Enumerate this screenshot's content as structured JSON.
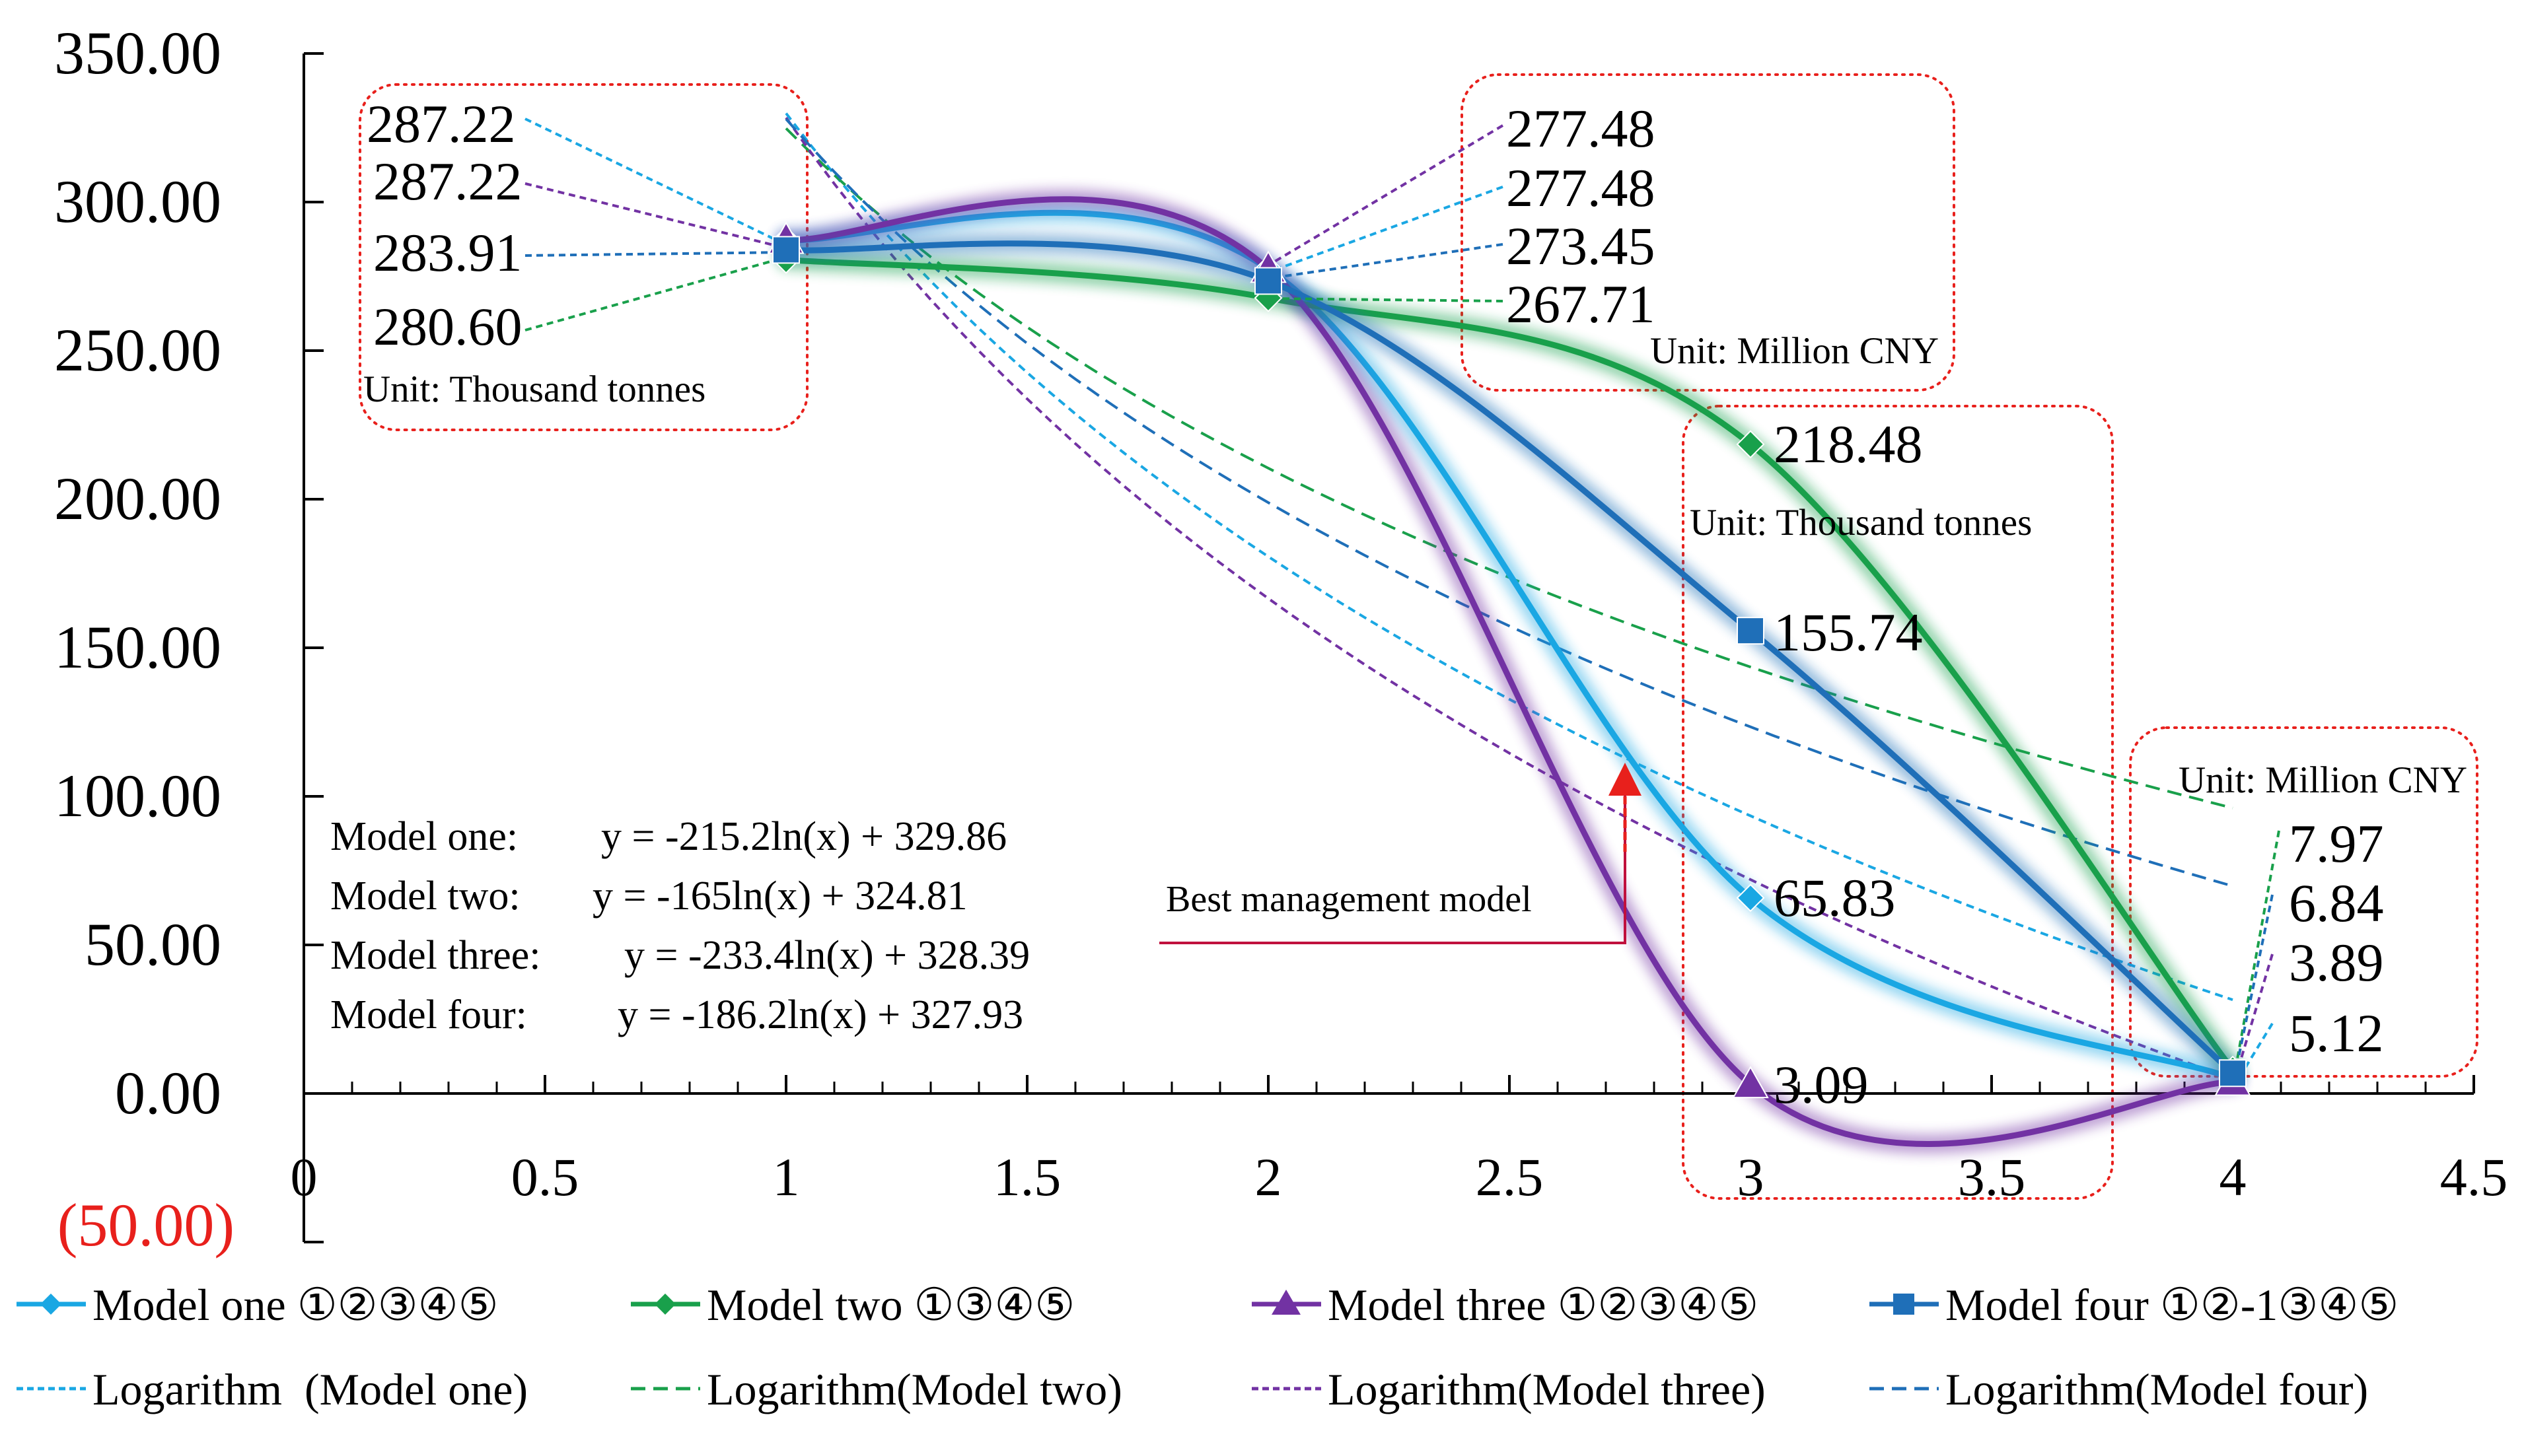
{
  "chart_data": {
    "type": "line",
    "title": "",
    "xlabel": "",
    "ylabel": "",
    "xlim": [
      0,
      4.5
    ],
    "ylim": [
      -50,
      350
    ],
    "x_ticks": [
      0,
      0.5,
      1,
      1.5,
      2,
      2.5,
      3,
      3.5,
      4,
      4.5
    ],
    "x_tick_labels": [
      "0",
      "0.5",
      "1",
      "1.5",
      "2",
      "2.5",
      "3",
      "3.5",
      "4",
      "4.5"
    ],
    "y_ticks": [
      -50,
      0,
      50,
      100,
      150,
      200,
      250,
      300,
      350
    ],
    "y_tick_labels": [
      "(50.00)",
      "0.00",
      "50.00",
      "100.00",
      "150.00",
      "200.00",
      "250.00",
      "300.00",
      "350.00"
    ],
    "negative_tick_color": "#e8201c",
    "series": [
      {
        "name": "Model one ①②③④⑤",
        "color": "#1aa7e3",
        "marker": "diamond",
        "x": [
          1,
          2,
          3,
          4
        ],
        "values": [
          287.22,
          277.48,
          65.83,
          5.12
        ]
      },
      {
        "name": "Model two ①③④⑤",
        "color": "#19a04b",
        "marker": "diamond",
        "x": [
          1,
          2,
          3,
          4
        ],
        "values": [
          280.6,
          267.71,
          218.48,
          7.97
        ]
      },
      {
        "name": "Model three ①②③④⑤",
        "color": "#7232a3",
        "marker": "triangle",
        "x": [
          1,
          2,
          3,
          4
        ],
        "values": [
          287.22,
          277.48,
          3.09,
          3.89
        ]
      },
      {
        "name": "Model four ①②-1③④⑤",
        "color": "#1f6fb8",
        "marker": "square",
        "x": [
          1,
          2,
          3,
          4
        ],
        "values": [
          283.91,
          273.45,
          155.74,
          6.84
        ]
      }
    ],
    "trendlines": [
      {
        "name": "Logarithm  (Model one)",
        "color": "#1aa7e3",
        "a": -215.2,
        "b": 329.86,
        "dash": "fine"
      },
      {
        "name": "Logarithm(Model two)",
        "color": "#19a04b",
        "a": -165,
        "b": 324.81,
        "dash": "coarse"
      },
      {
        "name": "Logarithm(Model three)",
        "color": "#7232a3",
        "a": -233.4,
        "b": 328.39,
        "dash": "fine"
      },
      {
        "name": "Logarithm(Model four)",
        "color": "#1f6fb8",
        "a": -186.2,
        "b": 327.93,
        "dash": "coarse"
      }
    ],
    "equations": [
      {
        "model": "Model one:",
        "formula": "y = -215.2ln(x) + 329.86"
      },
      {
        "model": "Model two:",
        "formula": "y = -165ln(x) + 324.81"
      },
      {
        "model": "Model three:",
        "formula": "y = -233.4ln(x) + 328.39"
      },
      {
        "model": "Model four:",
        "formula": "y = -186.2ln(x) + 327.93"
      }
    ],
    "label_groups": [
      {
        "unit": "Unit: Thousand tonnes",
        "labels": [
          {
            "text": "287.22",
            "color": "#1aa7e3"
          },
          {
            "text": "287.22",
            "color": "#7232a3"
          },
          {
            "text": "283.91",
            "color": "#1f6fb8"
          },
          {
            "text": "280.60",
            "color": "#19a04b"
          }
        ]
      },
      {
        "unit": "Unit: Million CNY",
        "labels": [
          {
            "text": "277.48",
            "color": "#7232a3"
          },
          {
            "text": "277.48",
            "color": "#1aa7e3"
          },
          {
            "text": "273.45",
            "color": "#1f6fb8"
          },
          {
            "text": "267.71",
            "color": "#19a04b"
          }
        ]
      },
      {
        "unit": "Unit: Thousand tonnes",
        "labels": [
          {
            "text": "218.48",
            "color": "#19a04b"
          },
          {
            "text": "155.74",
            "color": "#1f6fb8"
          },
          {
            "text": "65.83",
            "color": "#1aa7e3"
          },
          {
            "text": "3.09",
            "color": "#7232a3"
          }
        ]
      },
      {
        "unit": "Unit: Million CNY",
        "labels": [
          {
            "text": "7.97",
            "color": "#19a04b"
          },
          {
            "text": "6.84",
            "color": "#1f6fb8"
          },
          {
            "text": "3.89",
            "color": "#7232a3"
          },
          {
            "text": "5.12",
            "color": "#1aa7e3"
          }
        ]
      }
    ],
    "annotation": {
      "text": "Best management model",
      "color": "#c0103d",
      "arrow_color": "#e8201c"
    },
    "box_color": "#e8201c"
  }
}
